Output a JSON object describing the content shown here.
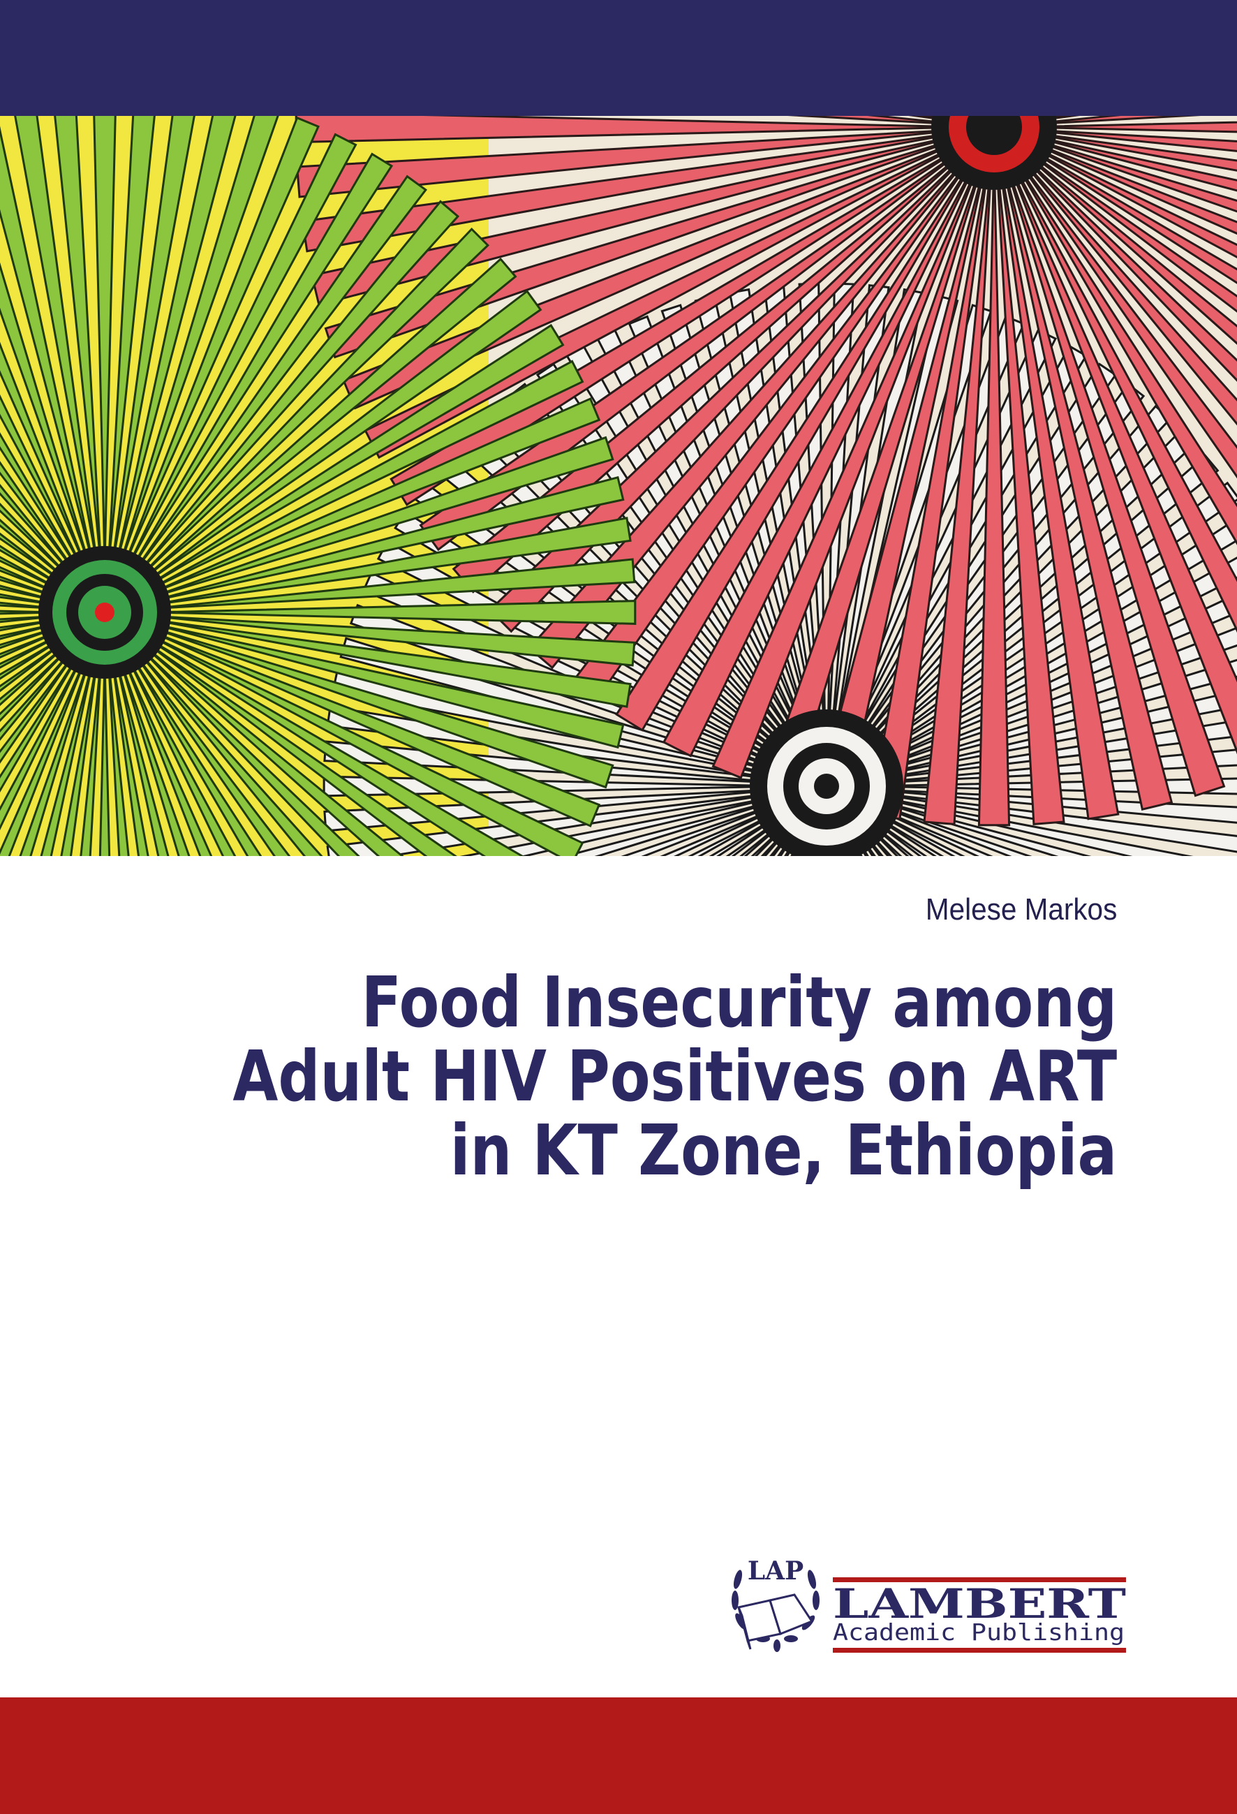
{
  "cover": {
    "author": "Melese Markos",
    "title_lines": [
      "Food Insecurity among",
      "Adult HIV Positives on ART",
      "in KT Zone, Ethiopia"
    ]
  },
  "publisher": {
    "logo_mark": "LAP",
    "name": "LAMBERT",
    "subtitle": "Academic Publishing"
  },
  "colors": {
    "top_band": "#2c2962",
    "bottom_band": "#b21a1a",
    "title_text": "#2c2962",
    "logo_blue": "#2c2962",
    "logo_red": "#b21a1a"
  },
  "icons": [
    "open-book-icon",
    "laurel-wreath-icon"
  ]
}
